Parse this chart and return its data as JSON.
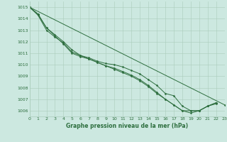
{
  "title": "Graphe pression niveau de la mer (hPa)",
  "bg_color": "#cce8e0",
  "grid_color": "#aaccbb",
  "line_color": "#2d6e3e",
  "xlim": [
    0,
    23
  ],
  "ylim": [
    1005.5,
    1015.5
  ],
  "yticks": [
    1006,
    1007,
    1008,
    1009,
    1010,
    1011,
    1012,
    1013,
    1014,
    1015
  ],
  "xticks": [
    0,
    1,
    2,
    3,
    4,
    5,
    6,
    7,
    8,
    9,
    10,
    11,
    12,
    13,
    14,
    15,
    16,
    17,
    18,
    19,
    20,
    21,
    22,
    23
  ],
  "series": [
    [
      1015.0,
      1014.4,
      1013.2,
      1012.6,
      1012.0,
      1011.3,
      1010.8,
      1010.6,
      1010.3,
      1010.1,
      1010.0,
      1009.8,
      1009.5,
      1009.2,
      1008.7,
      1008.2,
      1007.5,
      1007.3,
      1006.4,
      1006.0,
      1006.0,
      1006.4,
      1006.6,
      null
    ],
    [
      1015.0,
      1014.4,
      1013.2,
      1012.5,
      1011.8,
      1011.0,
      1010.7,
      1010.5,
      1010.2,
      1009.9,
      1009.7,
      1009.4,
      1009.1,
      1008.7,
      1008.2,
      1007.6,
      1007.0,
      1006.5,
      1006.0,
      1005.8,
      1006.0,
      1006.4,
      1006.7,
      null
    ],
    [
      1015.0,
      1014.3,
      1013.0,
      1012.4,
      1011.9,
      1011.1,
      1010.8,
      1010.5,
      1010.2,
      1009.9,
      1009.6,
      1009.3,
      1009.0,
      1008.6,
      1008.1,
      1007.5,
      1007.0,
      1006.5,
      1006.0,
      1006.0,
      1006.0,
      1006.4,
      1006.7,
      null
    ],
    [
      1015.0,
      null,
      null,
      null,
      null,
      null,
      null,
      null,
      null,
      null,
      null,
      null,
      null,
      null,
      null,
      null,
      null,
      null,
      null,
      null,
      null,
      null,
      null,
      1006.5
    ]
  ]
}
